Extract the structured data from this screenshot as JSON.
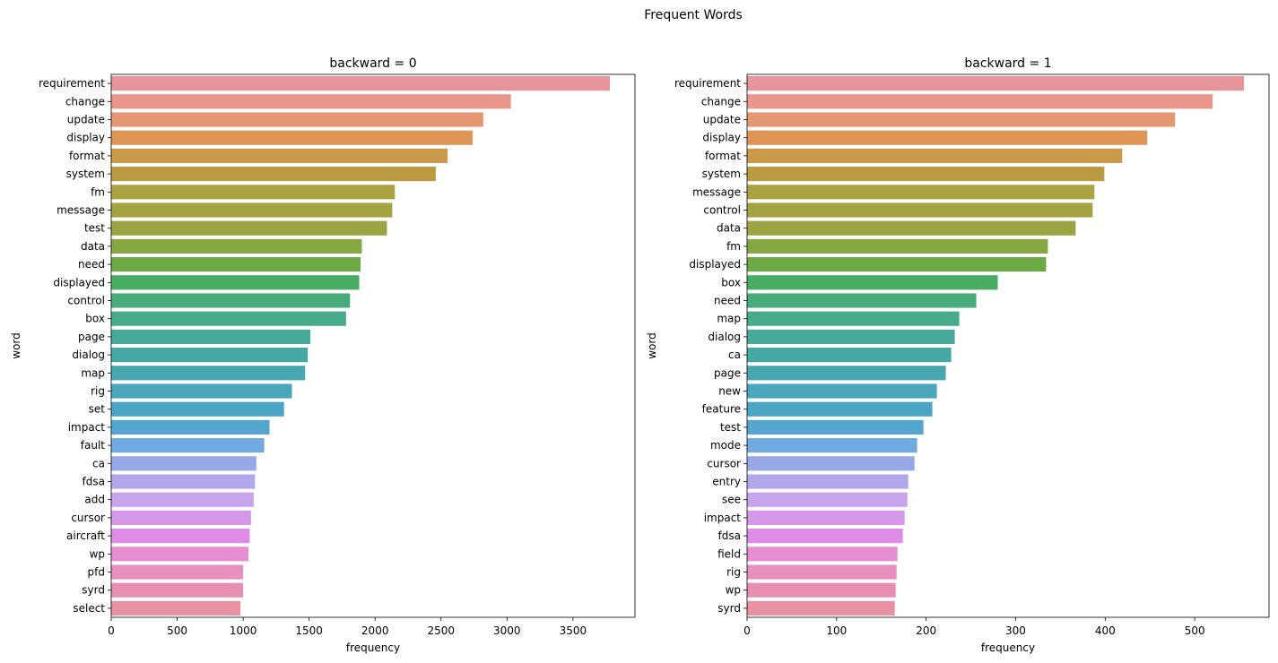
{
  "figure": {
    "suptitle": "Frequent Words"
  },
  "palette": [
    "#e8949b",
    "#e8978a",
    "#e49773",
    "#dd9656",
    "#ca9a4a",
    "#bb9b41",
    "#aba241",
    "#a4a341",
    "#9aa442",
    "#86a843",
    "#6ba945",
    "#48ad63",
    "#47ab7c",
    "#47aa8a",
    "#46a896",
    "#47a7a2",
    "#48a6ae",
    "#4aa6bb",
    "#4aa5c5",
    "#54a5d0",
    "#71aae0",
    "#97a8e6",
    "#b1a8eb",
    "#c7a4ec",
    "#d699e8",
    "#dd8de5",
    "#e58fd2",
    "#e78fbf",
    "#e68fb0",
    "#e791a3"
  ],
  "chart_data": [
    {
      "type": "bar",
      "orientation": "horizontal",
      "title": "backward = 0",
      "xlabel": "frequency",
      "ylabel": "word",
      "xlim": [
        0,
        3970
      ],
      "xticks": [
        0,
        500,
        1000,
        1500,
        2000,
        2500,
        3000,
        3500
      ],
      "categories": [
        "requirement",
        "change",
        "update",
        "display",
        "format",
        "system",
        "fm",
        "message",
        "test",
        "data",
        "need",
        "displayed",
        "control",
        "box",
        "page",
        "dialog",
        "map",
        "rig",
        "set",
        "impact",
        "fault",
        "ca",
        "fdsa",
        "add",
        "cursor",
        "aircraft",
        "wp",
        "pfd",
        "syrd",
        "select"
      ],
      "values": [
        3780,
        3030,
        2820,
        2740,
        2550,
        2460,
        2150,
        2130,
        2090,
        1900,
        1890,
        1880,
        1810,
        1780,
        1510,
        1490,
        1470,
        1370,
        1310,
        1200,
        1160,
        1100,
        1090,
        1080,
        1060,
        1050,
        1040,
        1000,
        1000,
        980
      ],
      "grid": false,
      "legend": "none"
    },
    {
      "type": "bar",
      "orientation": "horizontal",
      "title": "backward = 1",
      "xlabel": "frequency",
      "ylabel": "word",
      "xlim": [
        0,
        583
      ],
      "xticks": [
        0,
        100,
        200,
        300,
        400,
        500
      ],
      "categories": [
        "requirement",
        "change",
        "update",
        "display",
        "format",
        "system",
        "message",
        "control",
        "data",
        "fm",
        "displayed",
        "box",
        "need",
        "map",
        "dialog",
        "ca",
        "page",
        "new",
        "feature",
        "test",
        "mode",
        "cursor",
        "entry",
        "see",
        "impact",
        "fdsa",
        "field",
        "rig",
        "wp",
        "syrd"
      ],
      "values": [
        555,
        520,
        478,
        447,
        419,
        399,
        388,
        386,
        367,
        336,
        334,
        280,
        256,
        237,
        232,
        228,
        222,
        212,
        207,
        197,
        190,
        187,
        180,
        179,
        176,
        174,
        168,
        167,
        166,
        165
      ],
      "grid": false,
      "legend": "none"
    }
  ]
}
